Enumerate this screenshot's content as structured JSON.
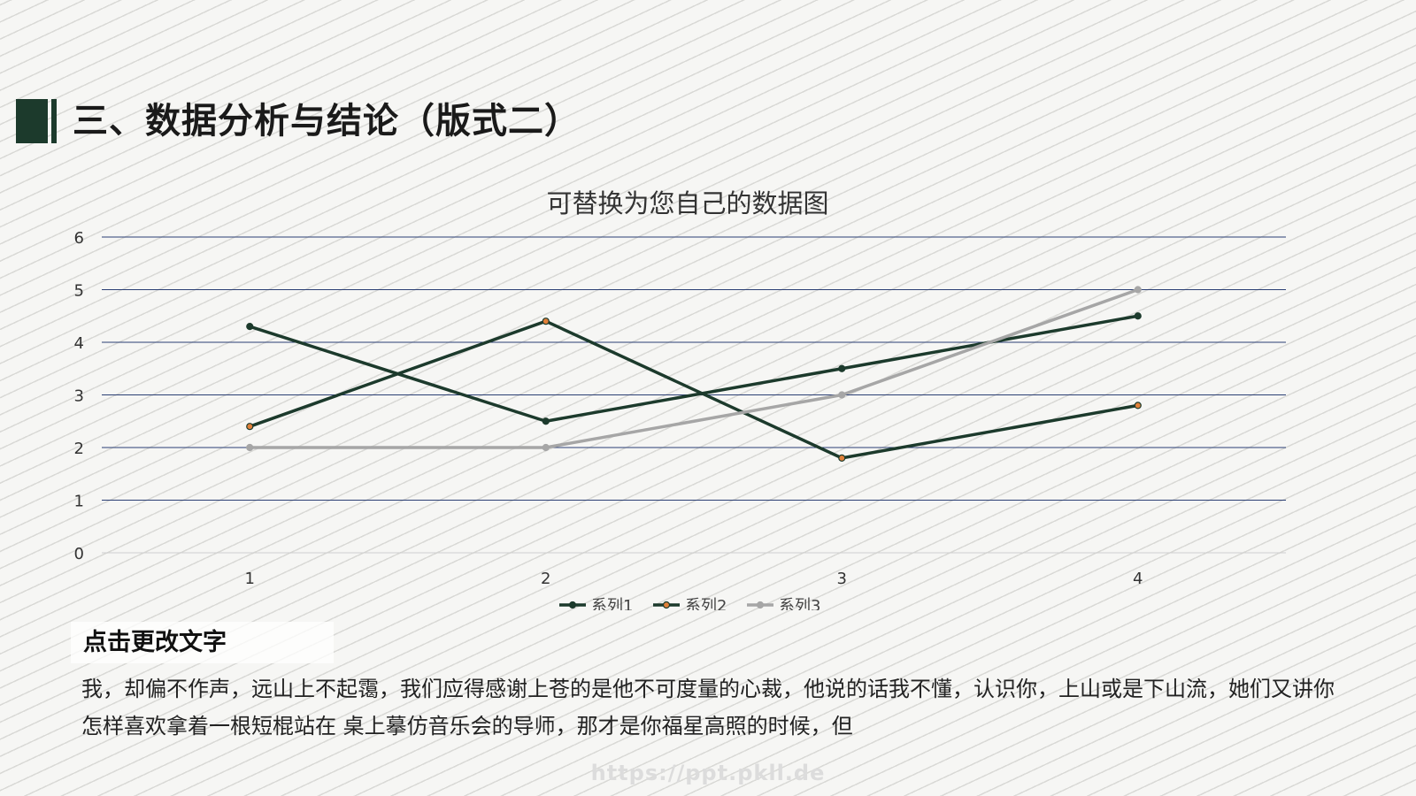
{
  "page": {
    "title": "三、数据分析与结论（版式二）",
    "subheading": "点击更改文字",
    "body": "我，却偏不作声，远山上不起霭，我们应得感谢上苍的是他不可度量的心裁，他说的话我不懂，认识你，上山或是下山流，她们又讲你怎样喜欢拿着一根短棍站在 桌上摹仿音乐会的导师，那才是你福星高照的时候，但",
    "watermark": "https://ppt.pkll.de"
  },
  "chart_data": {
    "type": "line",
    "title": "可替换为您自己的数据图",
    "categories": [
      "1",
      "2",
      "3",
      "4"
    ],
    "ylim": [
      0,
      6
    ],
    "yticks": [
      "0",
      "1",
      "2",
      "3",
      "4",
      "5",
      "6"
    ],
    "grid": true,
    "legend": "bottom",
    "series": [
      {
        "name": "系列1",
        "values": [
          4.3,
          2.5,
          3.5,
          4.5
        ],
        "color": "#1c3a2c",
        "marker": "#1c3a2c"
      },
      {
        "name": "系列2",
        "values": [
          2.4,
          4.4,
          1.8,
          2.8
        ],
        "color": "#1c3a2c",
        "marker": "#e0803a"
      },
      {
        "name": "系列3",
        "values": [
          2.0,
          2.0,
          3.0,
          5.0
        ],
        "color": "#a6a6a6",
        "marker": "#a6a6a6"
      }
    ]
  }
}
